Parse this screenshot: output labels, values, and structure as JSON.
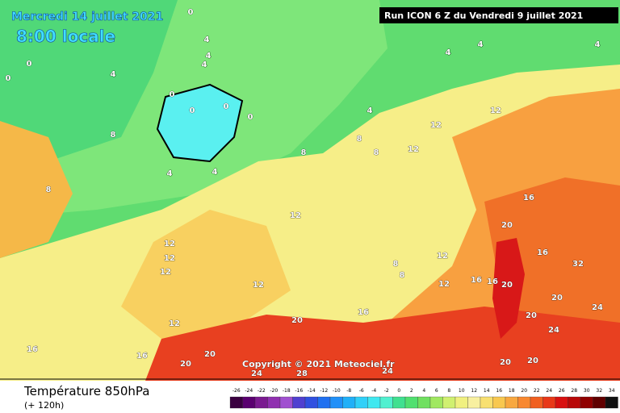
{
  "header": {
    "date": "Mercredi 14 juillet 2021",
    "time": "8:00 locale",
    "run": "Run ICON 6 Z du Vendredi 9 juillet 2021"
  },
  "copyright": "Copyright © 2021 Meteociel.fr",
  "footer": {
    "title": "Température 850hPa",
    "lead": "(+ 120h)"
  },
  "contour_labels": [
    0,
    4,
    4,
    0,
    4,
    0,
    0,
    4,
    0,
    0,
    0,
    4,
    4,
    4,
    4,
    8,
    4,
    8,
    4,
    8,
    8,
    12,
    12,
    12,
    8,
    12,
    12,
    16,
    16,
    20,
    20,
    16,
    12,
    12,
    12,
    12,
    8,
    8,
    12,
    16,
    20,
    16,
    20,
    20,
    24,
    20,
    24,
    28,
    24,
    20,
    16,
    16,
    12,
    20,
    24,
    32,
    20
  ],
  "legend": {
    "values": [
      -26,
      -24,
      -22,
      -20,
      -18,
      -16,
      -14,
      -12,
      -10,
      -8,
      -6,
      -4,
      -2,
      0,
      2,
      4,
      6,
      8,
      10,
      12,
      14,
      16,
      18,
      20,
      22,
      24,
      26,
      28,
      30,
      32,
      34
    ],
    "colors": [
      "#3a0040",
      "#5a0070",
      "#7a1a90",
      "#9030b0",
      "#a050d0",
      "#5040d0",
      "#3050e0",
      "#2070f0",
      "#2090f8",
      "#20b0f8",
      "#30d0f8",
      "#40e8f0",
      "#50f0d0",
      "#40e090",
      "#50e070",
      "#70e060",
      "#a0e860",
      "#d0f070",
      "#f0f080",
      "#f8f0a0",
      "#f8e070",
      "#f8c850",
      "#f8a840",
      "#f88830",
      "#f06020",
      "#e83818",
      "#d81010",
      "#b80808",
      "#900000",
      "#600000",
      "#101010"
    ]
  }
}
